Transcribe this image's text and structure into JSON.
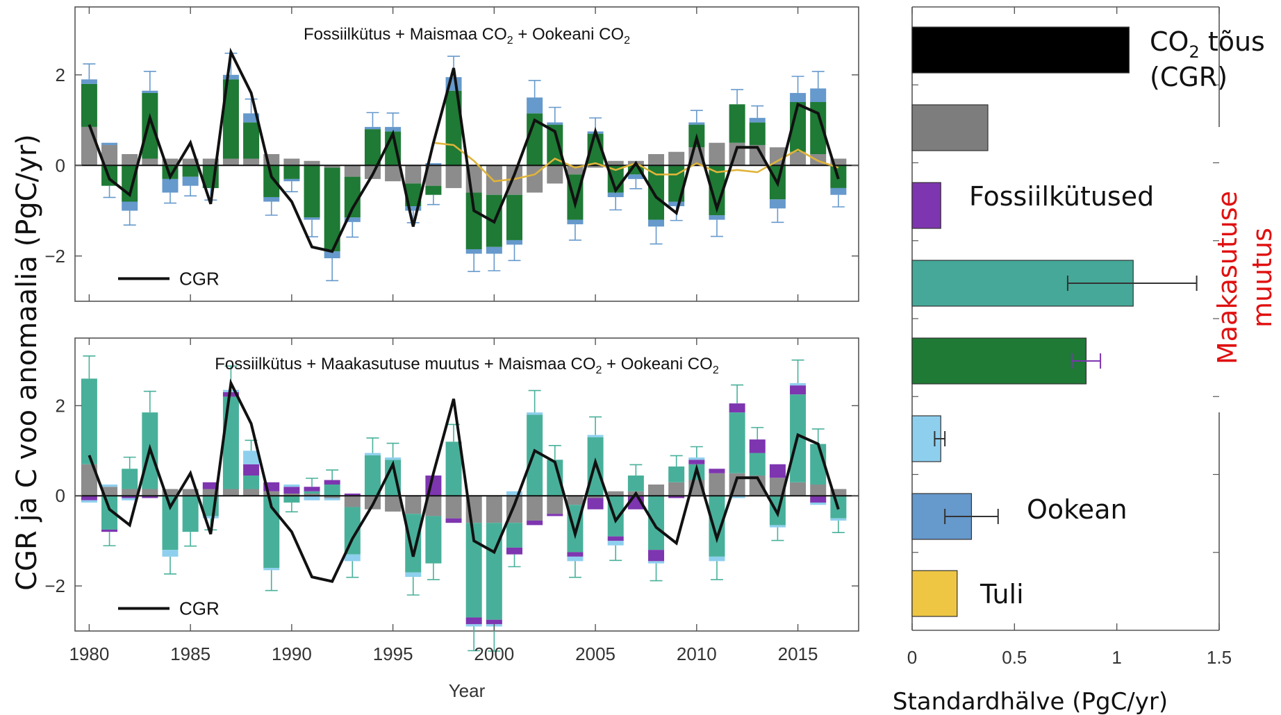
{
  "y_axis_label": "CGR ja C voo anomaalia (PgC/yr)",
  "right_side_label": [
    "Maakasutuse",
    "muutus"
  ],
  "chart_data": [
    {
      "type": "bar",
      "panel": "top",
      "title_parts": [
        "Fossiilkütus + Maismaa CO",
        "2",
        " + Ookeani CO",
        "2"
      ],
      "xlabel": "",
      "ylabel": "",
      "xlim": [
        1979.3,
        2018.0
      ],
      "ylim": [
        -3,
        3.5
      ],
      "x_ticks": [
        1980,
        1985,
        1990,
        1995,
        2000,
        2005,
        2010,
        2015
      ],
      "y_ticks": [
        -2,
        0,
        2
      ],
      "y_tick_labels": [
        "−2",
        "0",
        "2"
      ],
      "colors": {
        "fossil_gray": "#8c8c8c",
        "land": "#1e7a35",
        "ocean": "#6699cc",
        "fire": "#e0b43a",
        "cgr": "#111111"
      },
      "years": [
        1980,
        1981,
        1982,
        1983,
        1984,
        1985,
        1986,
        1987,
        1988,
        1989,
        1990,
        1991,
        1992,
        1993,
        1994,
        1995,
        1996,
        1997,
        1998,
        1999,
        2000,
        2001,
        2002,
        2003,
        2004,
        2005,
        2006,
        2007,
        2008,
        2009,
        2010,
        2011,
        2012,
        2013,
        2014,
        2015,
        2016,
        2017
      ],
      "series": [
        {
          "key": "fossil",
          "values": [
            0.85,
            0.45,
            0.25,
            0.15,
            0.15,
            0.15,
            0.15,
            0.15,
            0.15,
            0.25,
            0.15,
            0.1,
            -0.05,
            -0.25,
            -0.3,
            -0.35,
            -0.4,
            -0.45,
            -0.5,
            -0.6,
            -0.65,
            -0.65,
            -0.6,
            -0.4,
            -0.2,
            -0.05,
            0.1,
            0.1,
            0.25,
            0.3,
            0.4,
            0.5,
            0.5,
            0.45,
            0.4,
            0.3,
            0.25,
            0.15
          ]
        },
        {
          "key": "land",
          "values": [
            0.95,
            -0.45,
            -0.8,
            1.45,
            -0.3,
            -0.25,
            -0.5,
            1.75,
            0.8,
            -0.7,
            -0.3,
            -1.15,
            -1.85,
            -0.9,
            0.8,
            0.75,
            -0.5,
            -0.2,
            1.65,
            -1.25,
            -1.15,
            -1.0,
            1.15,
            0.9,
            -1.0,
            0.7,
            -0.6,
            -0.2,
            -1.2,
            -0.8,
            0.5,
            -1.1,
            0.85,
            0.5,
            -0.75,
            1.1,
            1.15,
            -0.5
          ]
        },
        {
          "key": "ocean",
          "values": [
            0.1,
            0.05,
            -0.2,
            0.05,
            -0.3,
            -0.2,
            0.0,
            0.1,
            0.2,
            -0.1,
            -0.05,
            -0.05,
            -0.15,
            -0.1,
            0.05,
            0.1,
            -0.1,
            0.05,
            0.3,
            -0.1,
            -0.15,
            -0.1,
            0.35,
            0.05,
            -0.1,
            0.05,
            -0.1,
            -0.1,
            -0.15,
            -0.1,
            0.05,
            -0.1,
            0.0,
            0.1,
            -0.2,
            0.2,
            0.3,
            -0.15
          ]
        },
        {
          "key": "fire",
          "values": [
            null,
            null,
            null,
            null,
            null,
            null,
            null,
            null,
            null,
            null,
            null,
            null,
            null,
            null,
            null,
            null,
            null,
            0.5,
            0.45,
            0.1,
            -0.35,
            -0.3,
            -0.2,
            0.15,
            -0.05,
            0.05,
            -0.1,
            0.05,
            -0.2,
            -0.2,
            0.05,
            -0.15,
            -0.1,
            -0.15,
            0.1,
            0.35,
            0.1,
            -0.05
          ]
        },
        {
          "key": "cgr",
          "name": "CGR",
          "values": [
            0.9,
            -0.3,
            -0.65,
            1.05,
            -0.25,
            0.5,
            -0.85,
            2.5,
            1.6,
            -0.25,
            -0.8,
            -1.8,
            -1.9,
            -0.95,
            -0.2,
            0.7,
            -1.35,
            0.5,
            2.15,
            -1.0,
            -1.25,
            -0.2,
            1.0,
            0.75,
            -0.85,
            0.75,
            -0.55,
            0.05,
            -0.7,
            -1.05,
            0.6,
            -0.95,
            0.4,
            0.4,
            -0.4,
            1.35,
            1.15,
            -0.3
          ]
        }
      ],
      "legend": "bottom-left"
    },
    {
      "type": "bar",
      "panel": "bottom",
      "title_parts": [
        "Fossiilkütus + Maakasutuse muutus + Maismaa CO",
        "2",
        " + Ookeani CO",
        "2"
      ],
      "xlabel": "Year",
      "ylabel": "",
      "xlim": [
        1979.3,
        2018.0
      ],
      "ylim": [
        -3,
        3.5
      ],
      "x_ticks": [
        1980,
        1985,
        1990,
        1995,
        2000,
        2005,
        2010,
        2015
      ],
      "y_ticks": [
        -2,
        0,
        2
      ],
      "y_tick_labels": [
        "−2",
        "0",
        "2"
      ],
      "colors": {
        "fossil_gray": "#8c8c8c",
        "land": "#48b09a",
        "landuse": "#7e35b0",
        "ocean": "#8ecfee",
        "cgr": "#111111"
      },
      "years": [
        1980,
        1981,
        1982,
        1983,
        1984,
        1985,
        1986,
        1987,
        1988,
        1989,
        1990,
        1991,
        1992,
        1993,
        1994,
        1995,
        1996,
        1997,
        1998,
        1999,
        2000,
        2001,
        2002,
        2003,
        2004,
        2005,
        2006,
        2007,
        2008,
        2009,
        2010,
        2011,
        2012,
        2013,
        2014,
        2015,
        2016,
        2017
      ],
      "series": [
        {
          "key": "fossil",
          "values": [
            0.7,
            0.2,
            0.15,
            0.15,
            0.15,
            0.15,
            0.15,
            0.15,
            0.15,
            0.1,
            0.05,
            0.05,
            -0.05,
            -0.25,
            -0.3,
            -0.35,
            -0.4,
            -0.45,
            -0.5,
            -0.6,
            -0.6,
            -0.6,
            -0.55,
            -0.4,
            -0.2,
            -0.05,
            0.1,
            0.1,
            0.25,
            0.3,
            0.35,
            0.5,
            0.5,
            0.45,
            0.4,
            0.3,
            0.25,
            0.15
          ]
        },
        {
          "key": "land",
          "values": [
            1.9,
            -0.75,
            0.45,
            1.7,
            -1.2,
            -0.8,
            -0.45,
            2.05,
            0.3,
            -1.6,
            -0.15,
            0.05,
            0.25,
            -1.05,
            0.9,
            0.8,
            -1.3,
            -1.05,
            1.2,
            -2.1,
            -2.15,
            -0.55,
            1.8,
            0.8,
            -1.05,
            1.3,
            -0.9,
            0.35,
            -1.2,
            0.35,
            0.35,
            -1.35,
            1.35,
            0.5,
            -0.65,
            1.95,
            0.9,
            -0.5
          ]
        },
        {
          "key": "landuse",
          "values": [
            -0.1,
            -0.05,
            -0.05,
            -0.05,
            0.0,
            0.0,
            0.15,
            0.1,
            0.25,
            0.2,
            0.15,
            0.1,
            0.1,
            0.05,
            0.0,
            0.0,
            0.0,
            0.45,
            -0.1,
            -0.15,
            -0.1,
            -0.15,
            -0.1,
            -0.05,
            -0.1,
            -0.25,
            -0.1,
            -0.3,
            -0.25,
            -0.05,
            0.1,
            0.1,
            0.2,
            0.3,
            0.3,
            0.2,
            -0.15,
            0.0
          ]
        },
        {
          "key": "ocean",
          "values": [
            -0.05,
            0.05,
            -0.05,
            0.0,
            -0.15,
            0.0,
            -0.05,
            0.05,
            0.3,
            -0.05,
            0.05,
            -0.1,
            -0.05,
            -0.15,
            0.05,
            0.05,
            -0.1,
            0.0,
            0.0,
            -0.05,
            -0.05,
            0.1,
            0.05,
            0.0,
            -0.1,
            0.05,
            -0.1,
            0.0,
            -0.05,
            0.0,
            0.05,
            -0.1,
            -0.05,
            0.0,
            -0.05,
            0.05,
            -0.05,
            -0.05
          ]
        },
        {
          "key": "cgr",
          "name": "CGR",
          "values": [
            0.9,
            -0.3,
            -0.65,
            1.05,
            -0.25,
            0.5,
            -0.85,
            2.5,
            1.6,
            -0.25,
            -0.8,
            -1.8,
            -1.9,
            -0.95,
            -0.2,
            0.7,
            -1.35,
            0.5,
            2.15,
            -1.0,
            -1.25,
            -0.2,
            1.0,
            0.75,
            -0.85,
            0.75,
            -0.55,
            0.05,
            -0.7,
            -1.05,
            0.6,
            -0.95,
            0.4,
            0.4,
            -0.4,
            1.35,
            1.15,
            -0.3
          ]
        }
      ],
      "legend": "bottom-left"
    },
    {
      "type": "bar",
      "panel": "right",
      "orientation": "horizontal",
      "xlabel": "Standardhälve (PgC/yr)",
      "xlim": [
        0,
        1.5
      ],
      "x_ticks": [
        0,
        0.5,
        1,
        1.5
      ],
      "x_tick_labels": [
        "0",
        "0.5",
        "1",
        "1.5"
      ],
      "bars": [
        {
          "label_parts": [
            "CO",
            "2",
            " tõus"
          ],
          "label_line2": "(CGR)",
          "value": 1.06,
          "color": "#000000"
        },
        {
          "label": "",
          "value": 0.37,
          "color": "#7d7d7d"
        },
        {
          "label": "Fossiilkütused",
          "value": 0.14,
          "color": "#7e35b0"
        },
        {
          "label": "",
          "value": 1.08,
          "color": "#45a898",
          "err": [
            0.76,
            1.39
          ],
          "err_color": "#333333"
        },
        {
          "label": "",
          "value": 0.85,
          "color": "#1e7a35",
          "err": [
            0.78,
            0.92
          ],
          "err_color": "#7e35b0"
        },
        {
          "label": "",
          "value": 0.14,
          "color": "#8ecfee",
          "err": [
            0.11,
            0.16
          ],
          "err_color": "#333333"
        },
        {
          "label": "Ookean",
          "value": 0.29,
          "color": "#6699cc",
          "err": [
            0.16,
            0.42
          ],
          "err_color": "#333333"
        },
        {
          "label": "Tuli",
          "value": 0.22,
          "color": "#eec643"
        }
      ]
    }
  ]
}
